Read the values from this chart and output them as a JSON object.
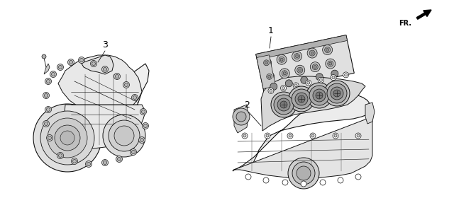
{
  "background_color": "#ffffff",
  "fig_width": 6.4,
  "fig_height": 2.97,
  "dpi": 100,
  "fr_label": "FR.",
  "fr_fontsize": 7,
  "label_fontsize": 9,
  "line_color": "#111111",
  "gray_fill": "#c8c8c8",
  "dark_fill": "#888888",
  "mid_fill": "#aaaaaa",
  "light_fill": "#e0e0e0"
}
